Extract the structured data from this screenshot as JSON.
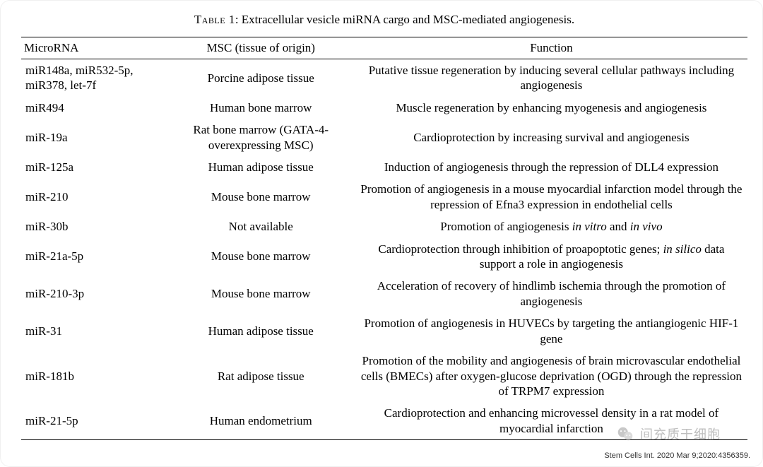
{
  "caption_label": "Table 1",
  "caption_text": ": Extracellular vesicle miRNA cargo and MSC-mediated angiogenesis.",
  "headers": {
    "c1": "MicroRNA",
    "c2": "MSC (tissue of origin)",
    "c3": "Function"
  },
  "rows": [
    {
      "mirna": "miR148a, miR532-5p, miR378, let-7f",
      "msc": "Porcine adipose tissue",
      "func": "Putative tissue regeneration by inducing several cellular pathways including angiogenesis"
    },
    {
      "mirna": "miR494",
      "msc": "Human bone marrow",
      "func": "Muscle regeneration by enhancing myogenesis and angiogenesis"
    },
    {
      "mirna": "miR-19a",
      "msc": "Rat bone marrow (GATA-4-overexpressing MSC)",
      "func": "Cardioprotection by increasing survival and angiogenesis"
    },
    {
      "mirna": "miR-125a",
      "msc": "Human adipose tissue",
      "func": "Induction of angiogenesis through the repression of DLL4 expression"
    },
    {
      "mirna": "miR-210",
      "msc": "Mouse bone marrow",
      "func": "Promotion of angiogenesis in a mouse myocardial infarction model through the repression of Efna3 expression in endothelial cells"
    },
    {
      "mirna": "miR-30b",
      "msc": "Not available",
      "func_html": "Promotion of angiogenesis <em>in vitro</em> and <em>in vivo</em>"
    },
    {
      "mirna": "miR-21a-5p",
      "msc": "Mouse bone marrow",
      "func_html": "Cardioprotection through inhibition of proapoptotic genes; <em>in silico</em> data support a role in angiogenesis"
    },
    {
      "mirna": "miR-210-3p",
      "msc": "Mouse bone marrow",
      "func": "Acceleration of recovery of hindlimb ischemia through the promotion of angiogenesis"
    },
    {
      "mirna": "miR-31",
      "msc": "Human adipose tissue",
      "func": "Promotion of angiogenesis in HUVECs by targeting the antiangiogenic HIF-1 gene"
    },
    {
      "mirna": "miR-181b",
      "msc": "Rat adipose tissue",
      "func": "Promotion of the mobility and angiogenesis of brain microvascular endothelial cells (BMECs) after oxygen-glucose deprivation (OGD) through the repression of TRPM7 expression"
    },
    {
      "mirna": "miR-21-5p",
      "msc": "Human endometrium",
      "func": "Cardioprotection and enhancing microvessel density in a rat model of myocardial infarction"
    }
  ],
  "watermark_text": "间充质干细胞",
  "citation": "Stem Cells Int. 2020 Mar 9;2020:4356359.",
  "colors": {
    "text": "#000000",
    "background": "#ffffff",
    "watermark": "#8a8a8a",
    "wechat_green": "#07c160"
  }
}
